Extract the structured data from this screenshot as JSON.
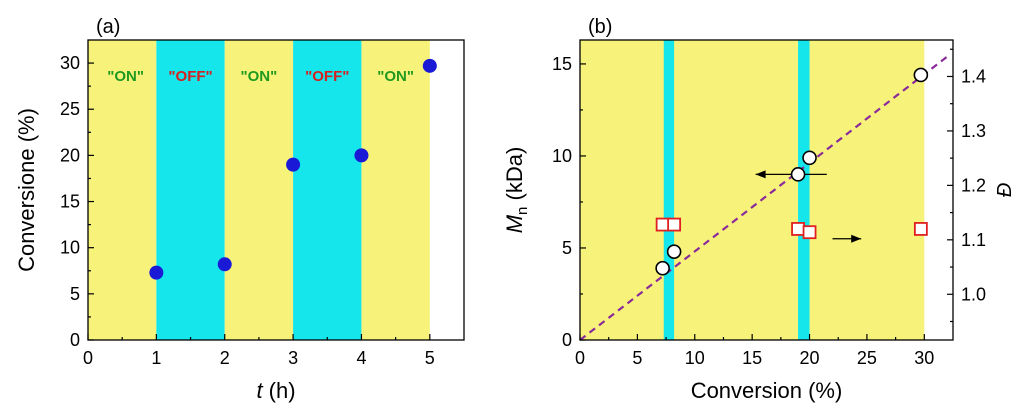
{
  "chart_data": [
    {
      "type": "scatter",
      "panel_label": "(a)",
      "xlabel_italic": "t",
      "xlabel_rest": " (h)",
      "ylabel": "Conversione (%)",
      "xlim": [
        0,
        5.5
      ],
      "ylim": [
        0,
        32.5
      ],
      "xticks": [
        0,
        1,
        2,
        3,
        4,
        5
      ],
      "yticks": [
        0,
        5,
        10,
        15,
        20,
        25,
        30
      ],
      "bands": [
        {
          "from": 0,
          "to": 1,
          "state": "on",
          "label": ""
        },
        {
          "from": 1,
          "to": 2,
          "state": "off",
          "label": ""
        },
        {
          "from": 2,
          "to": 3,
          "state": "on",
          "label": ""
        },
        {
          "from": 3,
          "to": 4,
          "state": "off",
          "label": ""
        },
        {
          "from": 4,
          "to": 5,
          "state": "on",
          "label": ""
        }
      ],
      "band_labels": [
        {
          "x": 0.55,
          "text": "\"ON\"",
          "color": "#1f9a1f"
        },
        {
          "x": 1.5,
          "text": "\"OFF\"",
          "color": "#d62020"
        },
        {
          "x": 2.5,
          "text": "\"ON\"",
          "color": "#1f9a1f"
        },
        {
          "x": 3.5,
          "text": "\"OFF\"",
          "color": "#d62020"
        },
        {
          "x": 4.5,
          "text": "\"ON\"",
          "color": "#1f9a1f"
        }
      ],
      "series": [
        {
          "marker": "filled-circle",
          "color": "#1a1ad6",
          "points": [
            [
              1,
              7.3
            ],
            [
              2,
              8.2
            ],
            [
              3,
              19.0
            ],
            [
              4,
              20.0
            ],
            [
              5,
              29.7
            ]
          ]
        }
      ]
    },
    {
      "type": "scatter",
      "panel_label": "(b)",
      "xlabel": "Conversion (%)",
      "ylabel_italic": "M",
      "ylabel_sub": "n",
      "ylabel_rest": " (kDa)",
      "y2label": "Đ",
      "xlim": [
        0,
        32.5
      ],
      "ylim": [
        0,
        16.3
      ],
      "y2lim": [
        0.916,
        1.467
      ],
      "xticks": [
        0,
        5,
        10,
        15,
        20,
        25,
        30
      ],
      "yticks": [
        0,
        5,
        10,
        15
      ],
      "y2ticks": [
        1.0,
        1.1,
        1.2,
        1.3,
        1.4
      ],
      "y2ticklabels": [
        "1.0",
        "1.1",
        "1.2",
        "1.3",
        "1.4"
      ],
      "yellow_region": [
        0,
        30
      ],
      "cyan_bands": [
        [
          7.3,
          8.2
        ],
        [
          19.0,
          20.0
        ]
      ],
      "series": [
        {
          "marker": "open-circle",
          "axis": "left",
          "points": [
            [
              7.2,
              3.9
            ],
            [
              8.2,
              4.8
            ],
            [
              19.0,
              9.0
            ],
            [
              20.0,
              9.9
            ],
            [
              29.7,
              14.4
            ]
          ]
        },
        {
          "marker": "open-square",
          "axis": "right",
          "color": "#e02020",
          "points": [
            [
              7.2,
              1.128
            ],
            [
              8.2,
              1.128
            ],
            [
              19.0,
              1.12
            ],
            [
              20.0,
              1.114
            ],
            [
              29.7,
              1.12
            ]
          ]
        }
      ],
      "fit_line": {
        "x1": 0,
        "y1": 0,
        "x2": 32,
        "y2": 15.4,
        "color": "#8a2a9a"
      },
      "arrows": [
        {
          "from": [
            21.5,
            9.0
          ],
          "to": [
            15.3,
            9.0
          ],
          "direction": "left"
        },
        {
          "from": [
            22.0,
            5.5
          ],
          "to": [
            24.5,
            5.5
          ],
          "direction": "right"
        }
      ]
    }
  ],
  "colors": {
    "yellow": "#f7f37a",
    "cyan": "#14e6ec"
  }
}
